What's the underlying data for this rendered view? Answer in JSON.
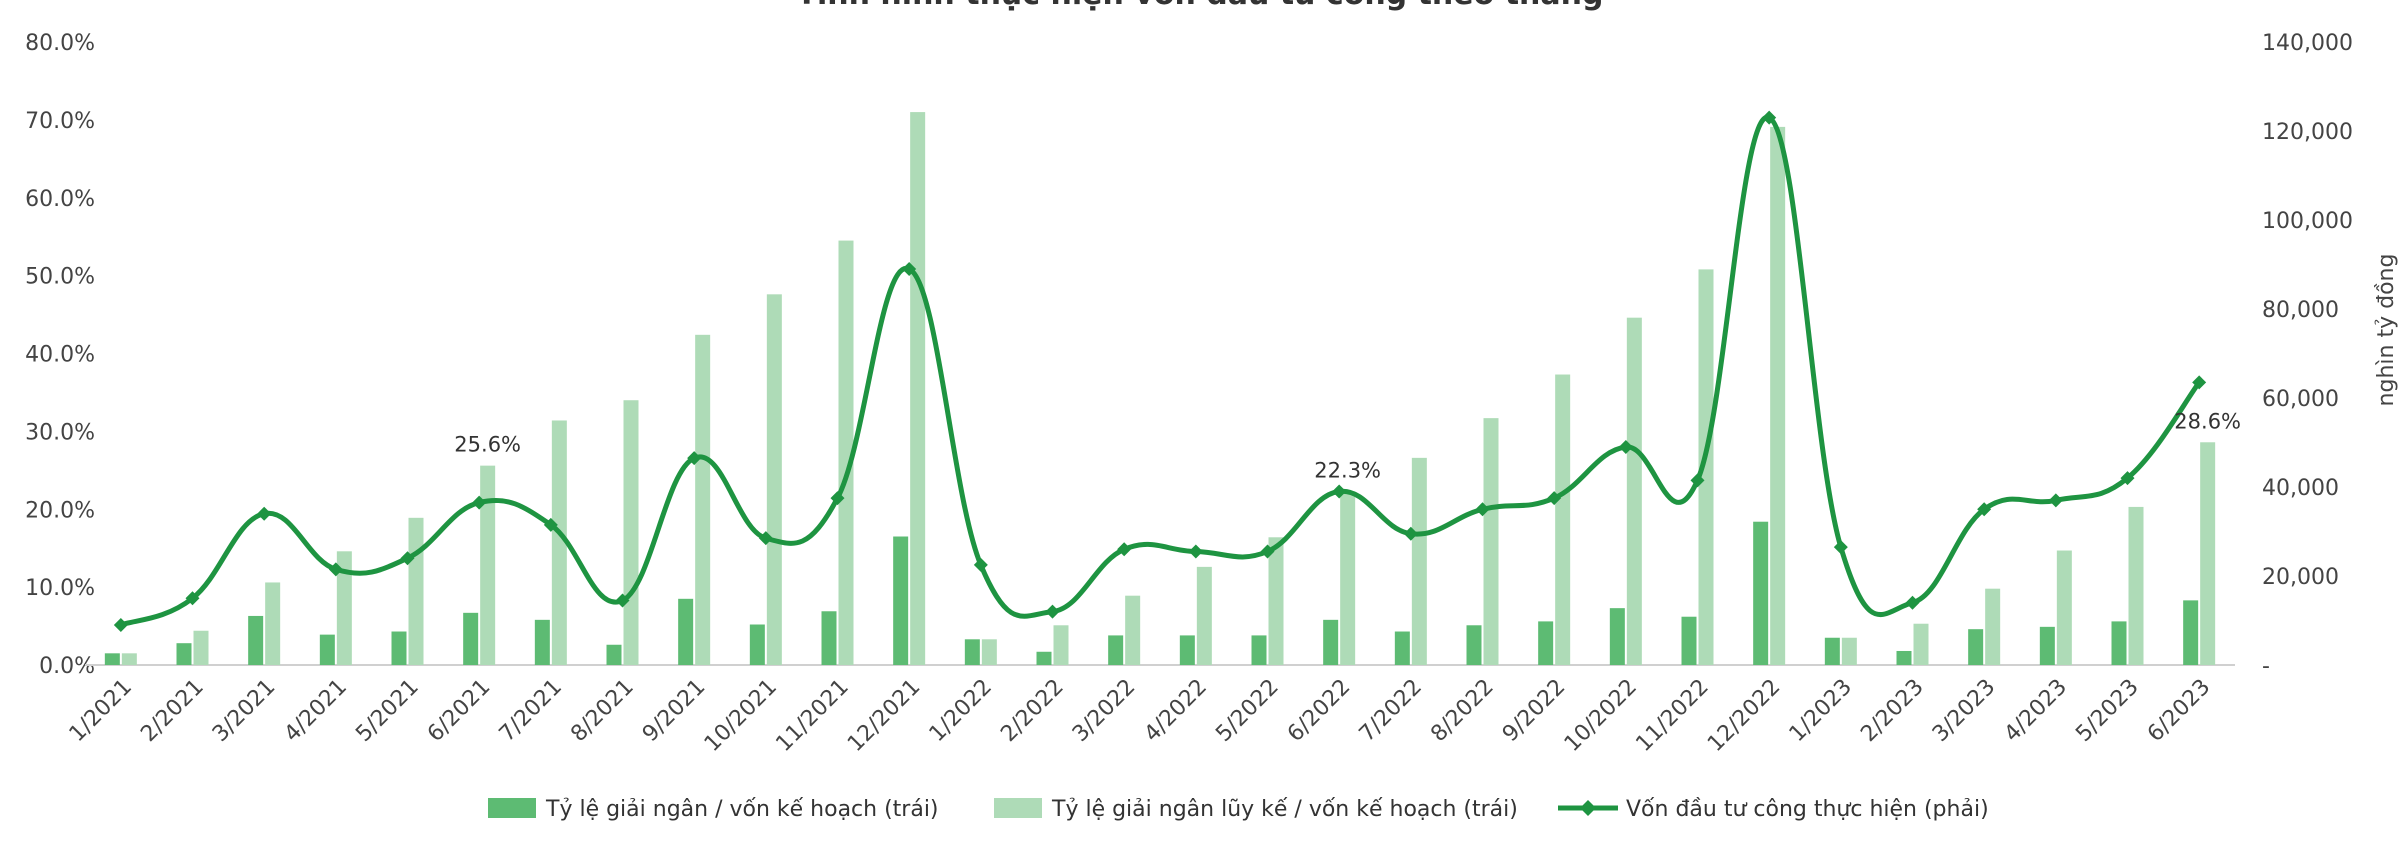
{
  "chart_data": {
    "type": "bar",
    "title": "Tình hình thực hiện vốn đầu tư công theo tháng",
    "categories": [
      "1/2021",
      "2/2021",
      "3/2021",
      "4/2021",
      "5/2021",
      "6/2021",
      "7/2021",
      "8/2021",
      "9/2021",
      "10/2021",
      "11/2021",
      "12/2021",
      "1/2022",
      "2/2022",
      "3/2022",
      "4/2022",
      "5/2022",
      "6/2022",
      "7/2022",
      "8/2022",
      "9/2022",
      "10/2022",
      "11/2022",
      "12/2022",
      "1/2023",
      "2/2023",
      "3/2023",
      "4/2023",
      "5/2023",
      "6/2023"
    ],
    "series": [
      {
        "name": "Tỷ lệ giải ngân / vốn kế hoạch (trái)",
        "chart": "bar",
        "axis": "left",
        "color": "#5dbb73",
        "values": [
          1.5,
          2.8,
          6.3,
          3.9,
          4.3,
          6.7,
          5.8,
          2.6,
          8.5,
          5.2,
          6.9,
          16.5,
          3.3,
          1.7,
          3.8,
          3.8,
          3.8,
          5.8,
          4.3,
          5.1,
          5.6,
          7.3,
          6.2,
          18.4,
          3.5,
          1.8,
          4.6,
          4.9,
          5.6,
          8.3
        ]
      },
      {
        "name": "Tỷ lệ giải ngân lũy kế / vốn kế hoạch (trái)",
        "chart": "bar",
        "axis": "left",
        "color": "#aedbb7",
        "values": [
          1.5,
          4.4,
          10.6,
          14.6,
          18.9,
          25.6,
          31.4,
          34.0,
          42.4,
          47.6,
          54.5,
          71.0,
          3.3,
          5.1,
          8.9,
          12.6,
          16.4,
          22.3,
          26.6,
          31.7,
          37.3,
          44.6,
          50.8,
          69.1,
          3.5,
          5.3,
          9.8,
          14.7,
          20.3,
          28.6
        ]
      },
      {
        "name": "Vốn đầu tư công thực hiện (phải)",
        "chart": "line",
        "axis": "right",
        "color": "#1e9441",
        "values": [
          9000,
          15000,
          34000,
          21500,
          24000,
          36500,
          31500,
          14500,
          46500,
          28500,
          37500,
          89000,
          22500,
          12000,
          26000,
          25500,
          25500,
          39000,
          29500,
          35000,
          37500,
          49000,
          41500,
          123000,
          26500,
          14000,
          35000,
          37000,
          42000,
          63500
        ]
      }
    ],
    "data_labels": [
      {
        "category": "6/2021",
        "text": "25.6%"
      },
      {
        "category": "6/2022",
        "text": "22.3%"
      },
      {
        "category": "6/2023",
        "text": "28.6%"
      }
    ],
    "y_left": {
      "ylim": [
        0,
        80
      ],
      "ticks": [
        0,
        10,
        20,
        30,
        40,
        50,
        60,
        70,
        80
      ],
      "tick_labels": [
        "0.0%",
        "10.0%",
        "20.0%",
        "30.0%",
        "40.0%",
        "50.0%",
        "60.0%",
        "70.0%",
        "80.0%"
      ]
    },
    "y_right": {
      "ylim": [
        0,
        140000
      ],
      "ticks": [
        0,
        20000,
        40000,
        60000,
        80000,
        100000,
        120000,
        140000
      ],
      "tick_labels": [
        "-",
        "20,000",
        "40,000",
        "60,000",
        "80,000",
        "100,000",
        "120,000",
        "140,000"
      ],
      "label": "nghìn tỷ đồng"
    },
    "legend_position": "bottom",
    "grid": false
  }
}
